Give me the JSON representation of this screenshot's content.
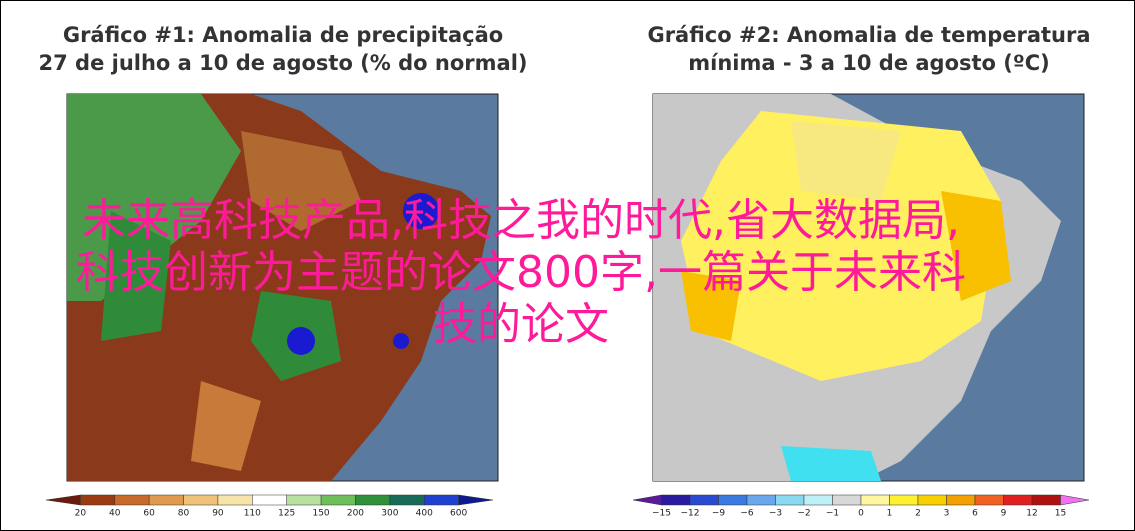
{
  "panels": [
    {
      "title": [
        "Gráfico #1: Anomalia de precipitação",
        "27 de julho a 10 de agosto (% do normal)"
      ],
      "colorbar": {
        "labels": [
          "20",
          "40",
          "60",
          "80",
          "90",
          "110",
          "125",
          "150",
          "200",
          "300",
          "400",
          "600"
        ],
        "colors": [
          "#6b1a0c",
          "#9c3a12",
          "#c76a2a",
          "#e09a50",
          "#efc27a",
          "#f6e4a8",
          "#ffffff",
          "#b8e0a0",
          "#6cbf5a",
          "#2f8f3a",
          "#1a6a5a",
          "#2040d0",
          "#0c1a90"
        ]
      }
    },
    {
      "title": [
        "Gráfico #2: Anomalia de temperatura",
        "mínima - 3 a 10 de agosto (ºC)"
      ],
      "colorbar": {
        "labels": [
          "−15",
          "−12",
          "−9",
          "−6",
          "−3",
          "−2",
          "−1",
          "0",
          "1",
          "2",
          "3",
          "6",
          "9",
          "12",
          "15"
        ],
        "colors": [
          "#5a1a9a",
          "#2a1aa0",
          "#2a4ad0",
          "#3a7ae0",
          "#6aa8ee",
          "#8ad8f0",
          "#bff0f8",
          "#d8d8d8",
          "#fff6a0",
          "#fff030",
          "#f8d000",
          "#f4a000",
          "#f06020",
          "#e02020",
          "#b01010",
          "#f070f0"
        ]
      }
    }
  ],
  "caption": [
    "未来高科技产品,科技之我的时代,省大数据局,",
    "科技创新为主题的论文800字,一篇关于未来科",
    "技的论文"
  ]
}
